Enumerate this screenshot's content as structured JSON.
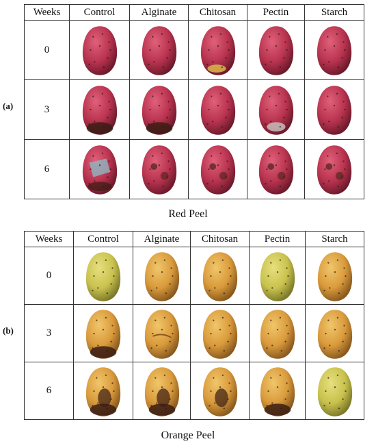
{
  "panels": [
    {
      "label": "(a)",
      "caption": "Red Peel",
      "header": [
        "Weeks",
        "Control",
        "Alginate",
        "Chitosan",
        "Pectin",
        "Starch"
      ],
      "weeks": [
        "0",
        "3",
        "6"
      ],
      "cells": [
        [
          {
            "peel": "red",
            "condition": "fresh"
          },
          {
            "peel": "red",
            "condition": "fresh"
          },
          {
            "peel": "red",
            "condition": "fresh-yellow-base"
          },
          {
            "peel": "red",
            "condition": "fresh"
          },
          {
            "peel": "red",
            "condition": "fresh"
          }
        ],
        [
          {
            "peel": "red",
            "condition": "dark-base"
          },
          {
            "peel": "red",
            "condition": "dark-base"
          },
          {
            "peel": "red",
            "condition": "fresh"
          },
          {
            "peel": "red",
            "condition": "cracked-base"
          },
          {
            "peel": "red",
            "condition": "fresh"
          }
        ],
        [
          {
            "peel": "red",
            "condition": "moldy"
          },
          {
            "peel": "red",
            "condition": "spotted"
          },
          {
            "peel": "red",
            "condition": "blemished"
          },
          {
            "peel": "red",
            "condition": "spotted-dark"
          },
          {
            "peel": "red",
            "condition": "blemished"
          }
        ]
      ],
      "colors": {
        "base": "#b8334f",
        "highlight": "#e0607a",
        "shadow": "#6e1a2c"
      }
    },
    {
      "label": "(b)",
      "caption": "Orange Peel",
      "header": [
        "Weeks",
        "Control",
        "Alginate",
        "Chitosan",
        "Pectin",
        "Starch"
      ],
      "weeks": [
        "0",
        "3",
        "6"
      ],
      "cells": [
        [
          {
            "peel": "orange",
            "condition": "green-yellow"
          },
          {
            "peel": "orange",
            "condition": "fresh"
          },
          {
            "peel": "orange",
            "condition": "fresh"
          },
          {
            "peel": "orange",
            "condition": "green-yellow"
          },
          {
            "peel": "orange",
            "condition": "fresh"
          }
        ],
        [
          {
            "peel": "orange",
            "condition": "dark-base"
          },
          {
            "peel": "orange",
            "condition": "wrinkled"
          },
          {
            "peel": "orange",
            "condition": "fresh"
          },
          {
            "peel": "orange",
            "condition": "fresh"
          },
          {
            "peel": "orange",
            "condition": "fresh"
          }
        ],
        [
          {
            "peel": "orange",
            "condition": "rotting"
          },
          {
            "peel": "orange",
            "condition": "rotting"
          },
          {
            "peel": "orange",
            "condition": "dark-patch"
          },
          {
            "peel": "orange",
            "condition": "dark-base"
          },
          {
            "peel": "orange",
            "condition": "green-yellow"
          }
        ]
      ],
      "colors": {
        "base": "#d99a3c",
        "highlight": "#f0c66a",
        "shadow": "#8a5a1e"
      }
    }
  ]
}
